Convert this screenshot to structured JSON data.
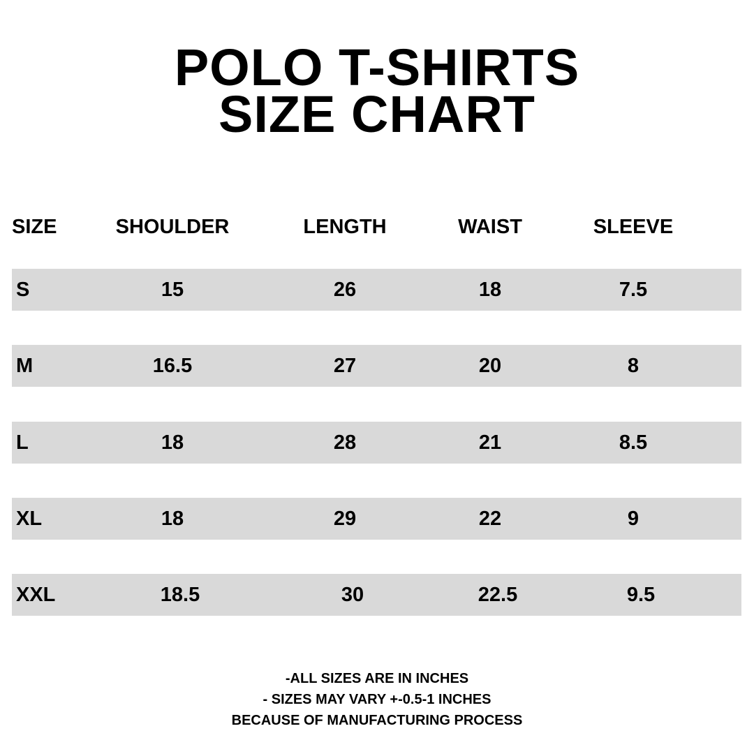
{
  "title": {
    "line1": "POLO T-SHIRTS",
    "line2": "SIZE CHART"
  },
  "colors": {
    "row_band": "#d9d9d9",
    "text": "#000000",
    "background": "#ffffff"
  },
  "table": {
    "headers": [
      "SIZE",
      "SHOULDER",
      "LENGTH",
      "WAIST",
      "SLEEVE"
    ],
    "rows": [
      [
        "S",
        "15",
        "26",
        "18",
        "7.5"
      ],
      [
        "M",
        "16.5",
        "27",
        "20",
        "8"
      ],
      [
        "L",
        "18",
        "28",
        "21",
        "8.5"
      ],
      [
        "XL",
        "18",
        "29",
        "22",
        "9"
      ],
      [
        "XXL",
        "18.5",
        "30",
        "22.5",
        "9.5"
      ]
    ]
  },
  "notes": [
    "-ALL SIZES ARE IN INCHES",
    "- SIZES MAY VARY +-0.5-1 INCHES",
    "BECAUSE OF MANUFACTURING PROCESS"
  ]
}
